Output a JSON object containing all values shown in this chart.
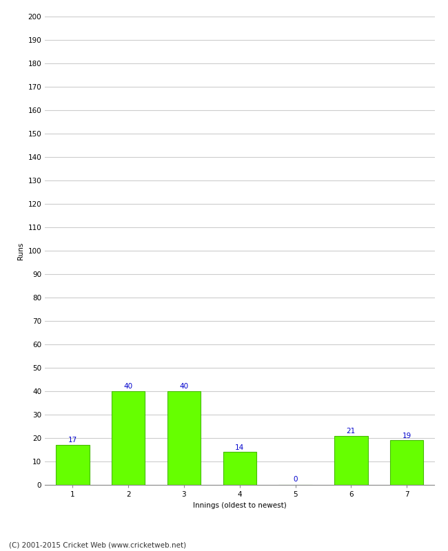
{
  "categories": [
    "1",
    "2",
    "3",
    "4",
    "5",
    "6",
    "7"
  ],
  "values": [
    17,
    40,
    40,
    14,
    0,
    21,
    19
  ],
  "bar_color": "#66ff00",
  "bar_edge_color": "#44bb00",
  "label_color": "#0000cc",
  "xlabel": "Innings (oldest to newest)",
  "ylabel": "Runs",
  "ylim": [
    0,
    200
  ],
  "yticks": [
    0,
    10,
    20,
    30,
    40,
    50,
    60,
    70,
    80,
    90,
    100,
    110,
    120,
    130,
    140,
    150,
    160,
    170,
    180,
    190,
    200
  ],
  "footer": "(C) 2001-2015 Cricket Web (www.cricketweb.net)",
  "background_color": "#ffffff",
  "grid_color": "#cccccc",
  "label_fontsize": 7.5,
  "axis_tick_fontsize": 7.5,
  "axis_label_fontsize": 7.5,
  "footer_fontsize": 7.5
}
